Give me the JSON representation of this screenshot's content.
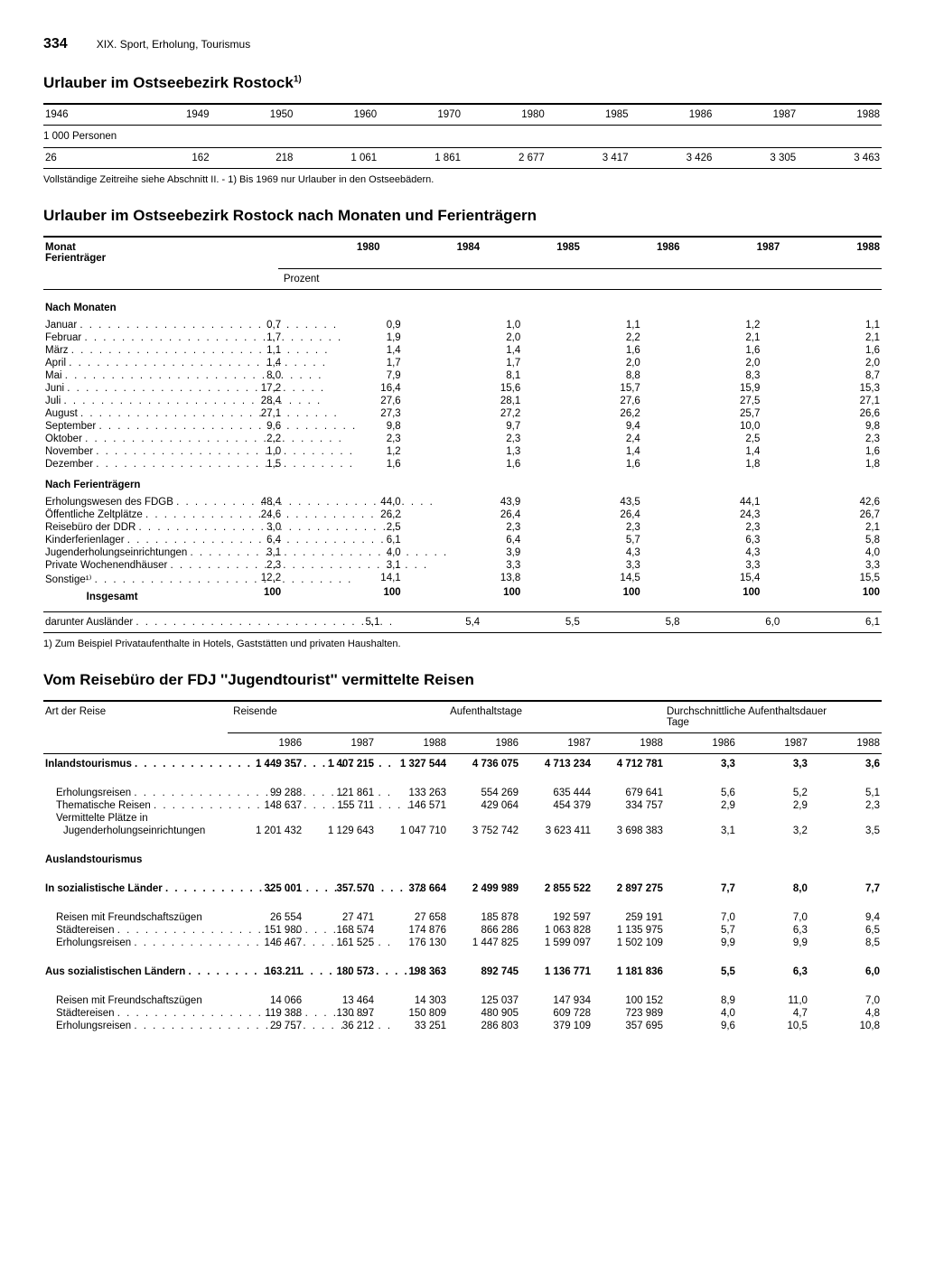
{
  "page": {
    "number": "334",
    "chapter": "XIX. Sport, Erholung, Tourismus"
  },
  "table1": {
    "title": "Urlauber im Ostseebezirk Rostock",
    "sup": "1)",
    "years": [
      "1946",
      "1949",
      "1950",
      "1960",
      "1970",
      "1980",
      "1985",
      "1986",
      "1987",
      "1988"
    ],
    "unit": "1 000 Personen",
    "values": [
      "26",
      "162",
      "218",
      "1 061",
      "1 861",
      "2 677",
      "3 417",
      "3 426",
      "3 305",
      "3 463"
    ],
    "footnote": "Vollständige Zeitreihe siehe Abschnitt II. - 1) Bis 1969 nur Urlauber in den Ostseebädern."
  },
  "table2": {
    "title": "Urlauber im Ostseebezirk Rostock nach Monaten und Ferienträgern",
    "col1a": "Monat",
    "col1b": "Ferienträger",
    "years": [
      "1980",
      "1984",
      "1985",
      "1986",
      "1987",
      "1988"
    ],
    "unit": "Prozent",
    "sect_months": "Nach Monaten",
    "months": [
      {
        "l": "Januar",
        "v": [
          "0,7",
          "0,9",
          "1,0",
          "1,1",
          "1,2",
          "1,1"
        ]
      },
      {
        "l": "Februar",
        "v": [
          "1,7",
          "1,9",
          "2,0",
          "2,2",
          "2,1",
          "2,1"
        ]
      },
      {
        "l": "März",
        "v": [
          "1,1",
          "1,4",
          "1,4",
          "1,6",
          "1,6",
          "1,6"
        ]
      },
      {
        "l": "April",
        "v": [
          "1,4",
          "1,7",
          "1,7",
          "2,0",
          "2,0",
          "2,0"
        ]
      },
      {
        "l": "Mai",
        "v": [
          "8,0",
          "7,9",
          "8,1",
          "8,8",
          "8,3",
          "8,7"
        ]
      },
      {
        "l": "Juni",
        "v": [
          "17,2",
          "16,4",
          "15,6",
          "15,7",
          "15,9",
          "15,3"
        ]
      },
      {
        "l": "Juli",
        "v": [
          "28,4",
          "27,6",
          "28,1",
          "27,6",
          "27,5",
          "27,1"
        ]
      },
      {
        "l": "August",
        "v": [
          "27,1",
          "27,3",
          "27,2",
          "26,2",
          "25,7",
          "26,6"
        ]
      },
      {
        "l": "September",
        "v": [
          "9,6",
          "9,8",
          "9,7",
          "9,4",
          "10,0",
          "9,8"
        ]
      },
      {
        "l": "Oktober",
        "v": [
          "2,2",
          "2,3",
          "2,3",
          "2,4",
          "2,5",
          "2,3"
        ]
      },
      {
        "l": "November",
        "v": [
          "1,0",
          "1,2",
          "1,3",
          "1,4",
          "1,4",
          "1,6"
        ]
      },
      {
        "l": "Dezember",
        "v": [
          "1,5",
          "1,6",
          "1,6",
          "1,6",
          "1,8",
          "1,8"
        ]
      }
    ],
    "sect_carriers": "Nach Ferienträgern",
    "carriers": [
      {
        "l": "Erholungswesen des FDGB",
        "v": [
          "48,4",
          "44,0",
          "43,9",
          "43,5",
          "44,1",
          "42,6"
        ]
      },
      {
        "l": "Öffentliche Zeltplätze",
        "v": [
          "24,6",
          "26,2",
          "26,4",
          "26,4",
          "24,3",
          "26,7"
        ]
      },
      {
        "l": "Reisebüro der DDR",
        "v": [
          "3,0",
          "2,5",
          "2,3",
          "2,3",
          "2,3",
          "2,1"
        ]
      },
      {
        "l": "Kinderferienlager",
        "v": [
          "6,4",
          "6,1",
          "6,4",
          "5,7",
          "6,3",
          "5,8"
        ]
      },
      {
        "l": "Jugenderholungseinrichtungen",
        "v": [
          "3,1",
          "4,0",
          "3,9",
          "4,3",
          "4,3",
          "4,0"
        ]
      },
      {
        "l": "Private Wochenendhäuser",
        "v": [
          "2,3",
          "3,1",
          "3,3",
          "3,3",
          "3,3",
          "3,3"
        ]
      },
      {
        "l": "Sonstige¹⁾",
        "v": [
          "12,2",
          "14,1",
          "13,8",
          "14,5",
          "15,4",
          "15,5"
        ]
      }
    ],
    "total_label": "Insgesamt",
    "total": [
      "100",
      "100",
      "100",
      "100",
      "100",
      "100"
    ],
    "foreign_label": "darunter Ausländer",
    "foreign": [
      "5,1",
      "5,4",
      "5,5",
      "5,8",
      "6,0",
      "6,1"
    ],
    "footnote": "1) Zum Beispiel Privataufenthalte in Hotels, Gaststätten und privaten Haushalten."
  },
  "table3": {
    "title": "Vom Reisebüro der FDJ ''Jugendtourist'' vermittelte Reisen",
    "col1": "Art der Reise",
    "group1": "Reisende",
    "group2": "Aufenthaltstage",
    "group3a": "Durchschnittliche Aufenthaltsdauer",
    "group3b": "Tage",
    "years": [
      "1986",
      "1987",
      "1988",
      "1986",
      "1987",
      "1988",
      "1986",
      "1987",
      "1988"
    ],
    "rows": [
      {
        "type": "bold dots",
        "l": "Inlandstourismus",
        "v": [
          "1 449 357",
          "1 407 215",
          "1 327 544",
          "4 736 075",
          "4 713 234",
          "4 712 781",
          "3,3",
          "3,3",
          "3,6"
        ]
      },
      {
        "type": "gap"
      },
      {
        "type": "indent dots",
        "l": "Erholungsreisen",
        "v": [
          "99 288",
          "121 861",
          "133 263",
          "554 269",
          "635 444",
          "679 641",
          "5,6",
          "5,2",
          "5,1"
        ]
      },
      {
        "type": "indent dots",
        "l": "Thematische Reisen",
        "v": [
          "148 637",
          "155 711",
          "146 571",
          "429 064",
          "454 379",
          "334 757",
          "2,9",
          "2,9",
          "2,3"
        ]
      },
      {
        "type": "indent nol",
        "l": "Vermittelte Plätze in",
        "v": [
          "",
          "",
          "",
          "",
          "",
          "",
          "",
          "",
          ""
        ]
      },
      {
        "type": "indent2",
        "l": "Jugenderholungseinrichtungen",
        "v": [
          "1 201 432",
          "1 129 643",
          "1 047 710",
          "3 752 742",
          "3 623 411",
          "3 698 383",
          "3,1",
          "3,2",
          "3,5"
        ]
      },
      {
        "type": "gap"
      },
      {
        "type": "boldplain",
        "l": "Auslandstourismus",
        "v": [
          "",
          "",
          "",
          "",
          "",
          "",
          "",
          "",
          ""
        ]
      },
      {
        "type": "gap"
      },
      {
        "type": "bold dots",
        "l": "In sozialistische Länder",
        "v": [
          "325 001",
          "357 570",
          "378 664",
          "2 499 989",
          "2 855 522",
          "2 897 275",
          "7,7",
          "8,0",
          "7,7"
        ]
      },
      {
        "type": "gap"
      },
      {
        "type": "indent",
        "l": "Reisen mit Freundschaftszügen",
        "v": [
          "26 554",
          "27 471",
          "27 658",
          "185 878",
          "192 597",
          "259 191",
          "7,0",
          "7,0",
          "9,4"
        ]
      },
      {
        "type": "indent dots",
        "l": "Städtereisen",
        "v": [
          "151 980",
          "168 574",
          "174 876",
          "866 286",
          "1 063 828",
          "1 135 975",
          "5,7",
          "6,3",
          "6,5"
        ]
      },
      {
        "type": "indent dots",
        "l": "Erholungsreisen",
        "v": [
          "146 467",
          "161 525",
          "176 130",
          "1 447 825",
          "1 599 097",
          "1 502 109",
          "9,9",
          "9,9",
          "8,5"
        ]
      },
      {
        "type": "gap"
      },
      {
        "type": "bold dots",
        "l": "Aus sozialistischen Ländern",
        "v": [
          "163 211",
          "180 573",
          "198 363",
          "892 745",
          "1 136 771",
          "1 181 836",
          "5,5",
          "6,3",
          "6,0"
        ]
      },
      {
        "type": "gap"
      },
      {
        "type": "indent",
        "l": "Reisen mit Freundschaftszügen",
        "v": [
          "14 066",
          "13 464",
          "14 303",
          "125 037",
          "147 934",
          "100 152",
          "8,9",
          "11,0",
          "7,0"
        ]
      },
      {
        "type": "indent dots",
        "l": "Städtereisen",
        "v": [
          "119 388",
          "130 897",
          "150 809",
          "480 905",
          "609 728",
          "723 989",
          "4,0",
          "4,7",
          "4,8"
        ]
      },
      {
        "type": "indent dots",
        "l": "Erholungsreisen",
        "v": [
          "29 757",
          "36 212",
          "33 251",
          "286 803",
          "379 109",
          "357 695",
          "9,6",
          "10,5",
          "10,8"
        ]
      }
    ]
  }
}
